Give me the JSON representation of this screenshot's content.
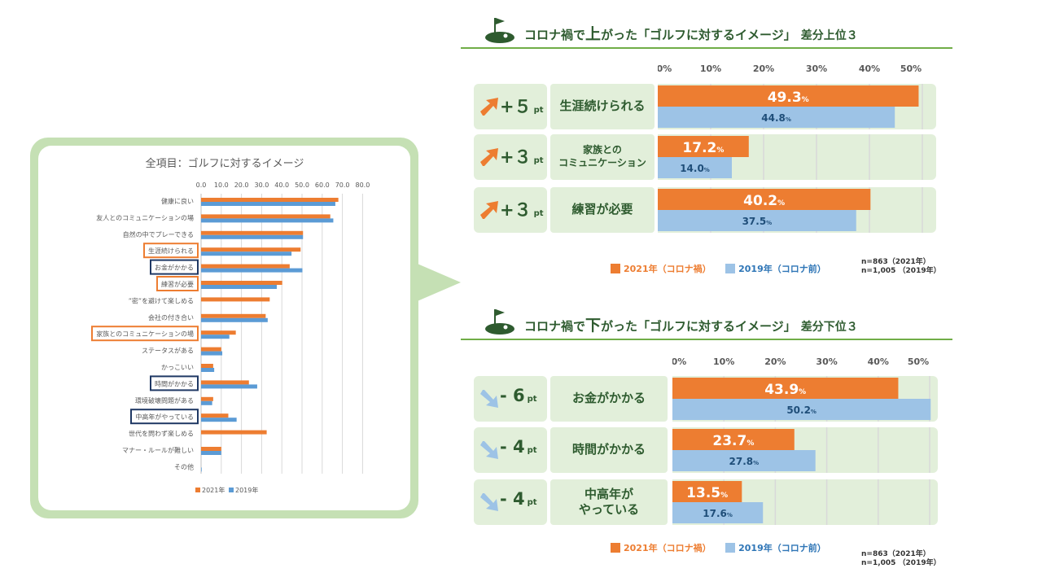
{
  "colors": {
    "c2021": "#ed7d31",
    "c2019": "#9dc3e6",
    "c2019_dark": "#5b9bd5",
    "green": "#70ad47",
    "dark_green": "#2e5b2f",
    "panel_bg": "#e2efda",
    "highlight_orange": "#ed7d31",
    "highlight_navy": "#1f3864"
  },
  "left_chart": {
    "title": "全項目：ゴルフに対するイメージ",
    "legend": [
      "2021年",
      "2019年"
    ]
  },
  "chart_data": [
    {
      "type": "bar",
      "orientation": "horizontal",
      "title": "全項目：ゴルフに対するイメージ",
      "xlim": [
        0,
        80
      ],
      "ticks": [
        "0.0",
        "10.0",
        "20.0",
        "30.0",
        "40.0",
        "50.0",
        "60.0",
        "70.0",
        "80.0"
      ],
      "categories": [
        "健康に良い",
        "友人とのコミュニケーションの場",
        "自然の中でプレーできる",
        "生涯続けられる",
        "お金がかかる",
        "練習が必要",
        "”密”を避けて楽しめる",
        "会社の付き合い",
        "家族とのコミュニケーションの場",
        "ステータスがある",
        "かっこいい",
        "時間がかかる",
        "環境破壊問題がある",
        "中高年がやっている",
        "世代を問わず楽しめる",
        "マナー・ルールが難しい",
        "その他"
      ],
      "highlights": {
        "orange": [
          "生涯続けられる",
          "練習が必要",
          "家族とのコミュニケーションの場"
        ],
        "navy": [
          "お金がかかる",
          "時間がかかる",
          "中高年がやっている"
        ]
      },
      "series": [
        {
          "name": "2021年",
          "values": [
            68.0,
            64.0,
            50.5,
            49.3,
            43.9,
            40.2,
            34.0,
            32.0,
            17.2,
            10.0,
            6.0,
            23.7,
            6.0,
            13.5,
            32.5,
            10.0,
            0.0
          ]
        },
        {
          "name": "2019年",
          "values": [
            66.5,
            65.5,
            50.5,
            44.8,
            50.2,
            37.5,
            0.0,
            33.0,
            14.0,
            10.5,
            6.5,
            27.8,
            5.5,
            17.6,
            0.0,
            10.0,
            0.3
          ]
        }
      ]
    },
    {
      "type": "bar",
      "orientation": "horizontal",
      "title": "コロナ禍で上がった「ゴルフに対するイメージ」差分上位３",
      "xlim": [
        0,
        50
      ],
      "ticks": [
        "0%",
        "10%",
        "20%",
        "30%",
        "40%",
        "50%"
      ],
      "categories": [
        "生涯続けられる",
        "家族とのコミュニケーション",
        "練習が必要"
      ],
      "deltas": [
        "+５",
        "+３",
        "+３"
      ],
      "series": [
        {
          "name": "2021年（コロナ禍）",
          "values": [
            49.3,
            17.2,
            40.2
          ]
        },
        {
          "name": "2019年（コロナ前）",
          "values": [
            44.8,
            14.0,
            37.5
          ]
        }
      ],
      "n_note": [
        "n=863（2021年）",
        "n=1,005 （2019年）"
      ]
    },
    {
      "type": "bar",
      "orientation": "horizontal",
      "title": "コロナ禍で下がった「ゴルフに対するイメージ」差分下位３",
      "xlim": [
        0,
        50
      ],
      "ticks": [
        "0%",
        "10%",
        "20%",
        "30%",
        "40%",
        "50%"
      ],
      "categories": [
        "お金がかかる",
        "時間がかかる",
        "中高年がやっている"
      ],
      "deltas": [
        "- 6",
        "- 4",
        "- 4"
      ],
      "series": [
        {
          "name": "2021年（コロナ禍）",
          "values": [
            43.9,
            23.7,
            13.5
          ]
        },
        {
          "name": "2019年（コロナ前）",
          "values": [
            50.2,
            27.8,
            17.6
          ]
        }
      ],
      "n_note": [
        "n=863（2021年）",
        "n=1,005 （2019年）"
      ]
    }
  ],
  "top": {
    "title_pre": "コロナ禍で",
    "title_big": "上",
    "title_mid": "がった「ゴルフに対するイメージ」",
    "title_tail": "差分上位３",
    "pt_label": "pt",
    "rows": [
      {
        "delta": "+５",
        "label_line1": "生涯続けられる",
        "label_line2": "",
        "v2021": "49.3",
        "v2019": "44.8"
      },
      {
        "delta": "+３",
        "label_line1": "家族との",
        "label_line2": "コミュニケーション",
        "v2021": "17.2",
        "v2019": "14.0"
      },
      {
        "delta": "+３",
        "label_line1": "練習が必要",
        "label_line2": "",
        "v2021": "40.2",
        "v2019": "37.5"
      }
    ],
    "legend_2021": "2021年（コロナ禍）",
    "legend_2019": "2019年（コロナ前）",
    "n1": "n=863（2021年）",
    "n2": "n=1,005 （2019年）"
  },
  "bottom": {
    "title_pre": "コロナ禍で",
    "title_big": "下",
    "title_mid": "がった「ゴルフに対するイメージ」",
    "title_tail": "差分下位３",
    "pt_label": "pt",
    "rows": [
      {
        "delta": "- 6",
        "label_line1": "お金がかかる",
        "label_line2": "",
        "v2021": "43.9",
        "v2019": "50.2"
      },
      {
        "delta": "- 4",
        "label_line1": "時間がかかる",
        "label_line2": "",
        "v2021": "23.7",
        "v2019": "27.8"
      },
      {
        "delta": "- 4",
        "label_line1": "中高年が",
        "label_line2": "やっている",
        "v2021": "13.5",
        "v2019": "17.6"
      }
    ],
    "legend_2021": "2021年（コロナ禍）",
    "legend_2019": "2019年（コロナ前）",
    "n1": "n=863（2021年）",
    "n2": "n=1,005 （2019年）"
  },
  "percent_sign": "%"
}
